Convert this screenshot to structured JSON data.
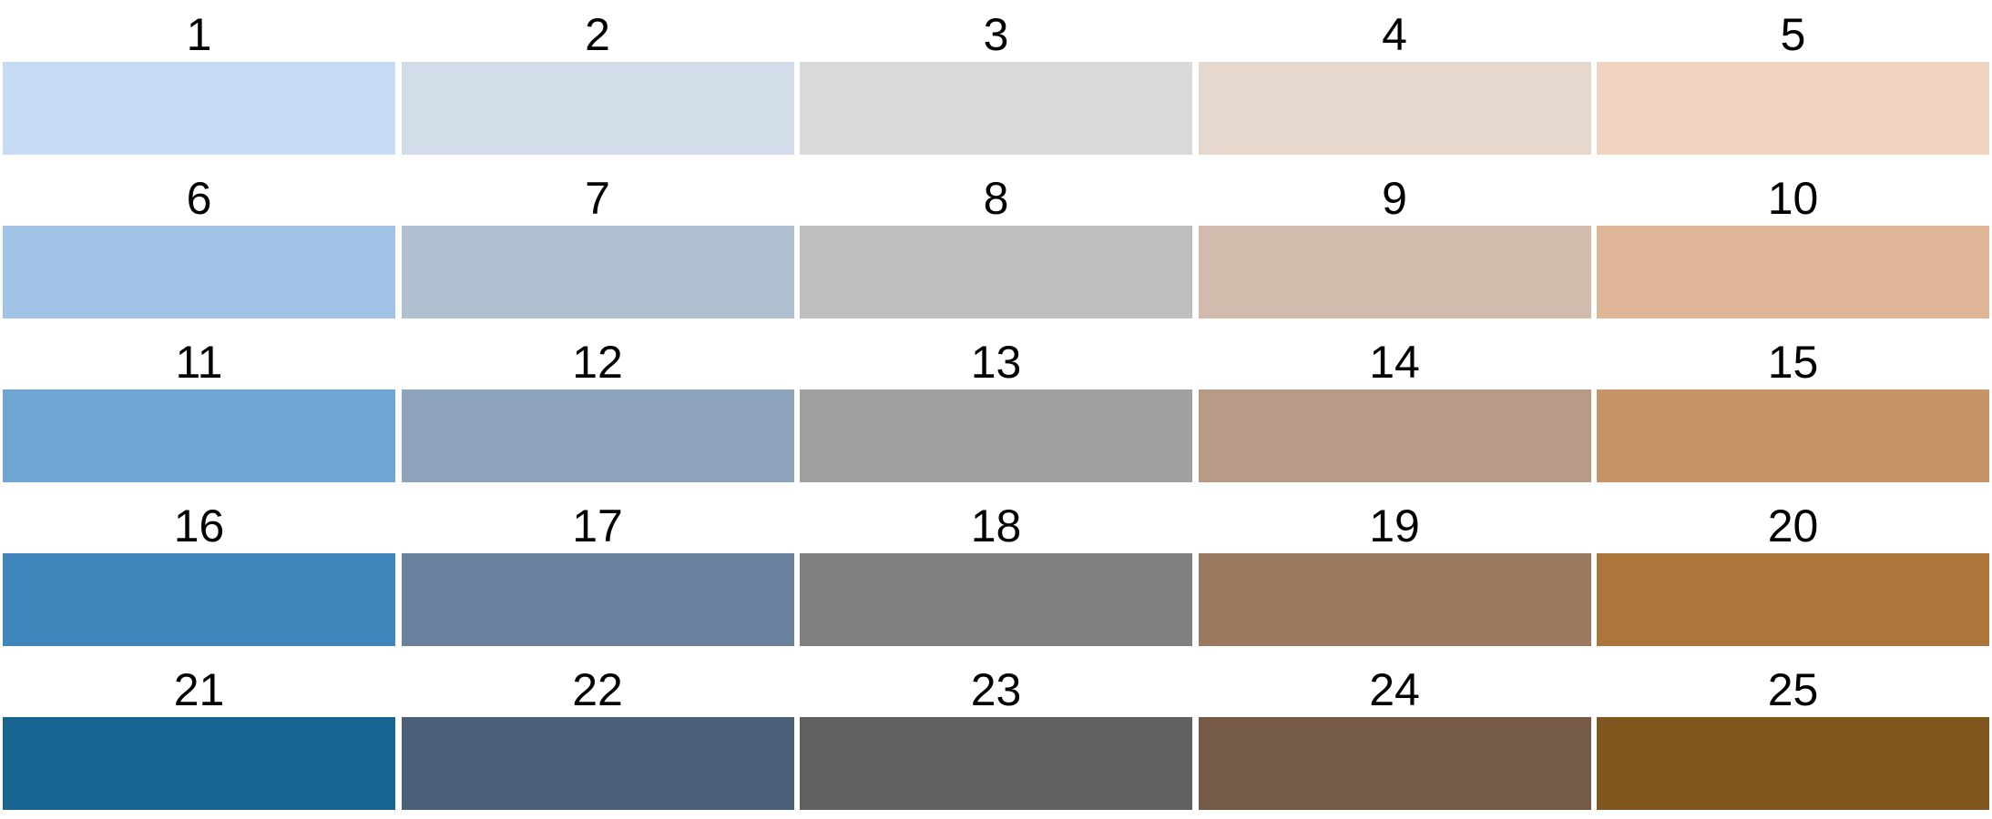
{
  "swatches": [
    {
      "label": "1",
      "color": "#c6dcf4"
    },
    {
      "label": "2",
      "color": "#d3dde9"
    },
    {
      "label": "3",
      "color": "#d9d9d9"
    },
    {
      "label": "4",
      "color": "#e7d8ce"
    },
    {
      "label": "5",
      "color": "#f0d4c0"
    },
    {
      "label": "6",
      "color": "#a1c3e5"
    },
    {
      "label": "7",
      "color": "#b0c0d1"
    },
    {
      "label": "8",
      "color": "#bebebe"
    },
    {
      "label": "9",
      "color": "#d0bbac"
    },
    {
      "label": "10",
      "color": "#dfb598"
    },
    {
      "label": "11",
      "color": "#6ea5d3"
    },
    {
      "label": "12",
      "color": "#8ea3bc"
    },
    {
      "label": "13",
      "color": "#a0a0a0"
    },
    {
      "label": "14",
      "color": "#b79b86"
    },
    {
      "label": "15",
      "color": "#c69467"
    },
    {
      "label": "16",
      "color": "#3e86bb"
    },
    {
      "label": "17",
      "color": "#6a829e"
    },
    {
      "label": "18",
      "color": "#808080"
    },
    {
      "label": "19",
      "color": "#997a60"
    },
    {
      "label": "20",
      "color": "#ab753b"
    },
    {
      "label": "21",
      "color": "#176490"
    },
    {
      "label": "22",
      "color": "#4b6078"
    },
    {
      "label": "23",
      "color": "#606060"
    },
    {
      "label": "24",
      "color": "#745a47"
    },
    {
      "label": "25",
      "color": "#82561f"
    }
  ]
}
